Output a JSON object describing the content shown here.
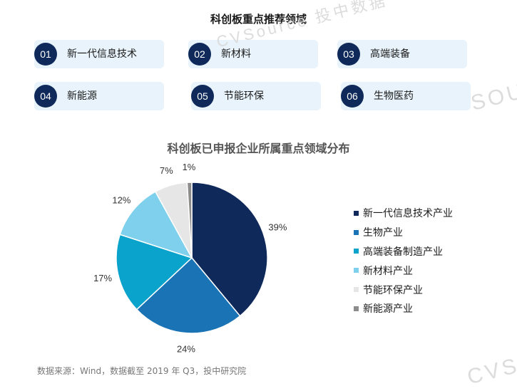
{
  "header": {
    "title": "科创板重点推荐领域"
  },
  "fields": [
    {
      "num": "01",
      "label": "新一代信息技术"
    },
    {
      "num": "02",
      "label": "新材料"
    },
    {
      "num": "03",
      "label": "高端装备"
    },
    {
      "num": "04",
      "label": "新能源"
    },
    {
      "num": "05",
      "label": "节能环保"
    },
    {
      "num": "06",
      "label": "生物医药"
    }
  ],
  "chart_data": {
    "type": "pie",
    "title": "科创板已申报企业所属重点领域分布",
    "categories": [
      "新一代信息技术产业",
      "生物产业",
      "高端装备制造产业",
      "新材料产业",
      "节能环保产业",
      "新能源产业"
    ],
    "values": [
      39,
      24,
      17,
      12,
      7,
      1
    ],
    "value_labels": [
      "39%",
      "24%",
      "17%",
      "12%",
      "7%",
      "1%"
    ],
    "colors": [
      "#0f2a5a",
      "#1a73b5",
      "#0aa3cc",
      "#7fd0ec",
      "#e6e6e6",
      "#8c8c8c"
    ],
    "start": "12 o'clock",
    "direction": "clockwise",
    "legend": "right"
  },
  "footer": {
    "source": "数据来源：Wind，数据截至 2019 年 Q3，投中研究院"
  },
  "watermarks": {
    "top": "CVSource 投中数据",
    "right": "SOU",
    "bottom": "CVS"
  }
}
